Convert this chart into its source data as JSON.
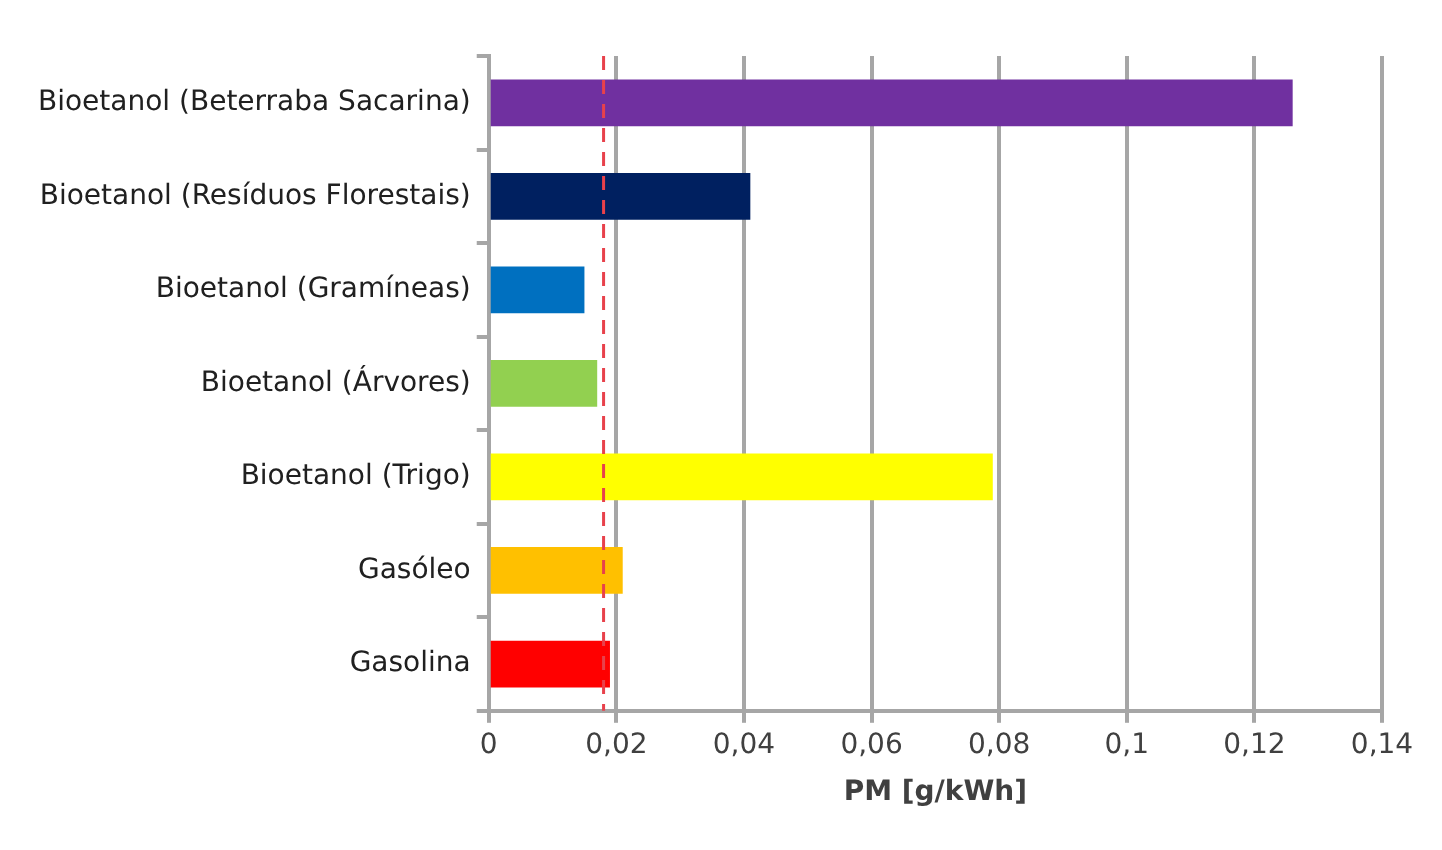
{
  "chart_data": {
    "type": "bar",
    "orientation": "horizontal",
    "xlabel": "PM [g/kWh]",
    "categories": [
      "Bioetanol (Beterraba Sacarina)",
      "Bioetanol (Resíduos Florestais)",
      "Bioetanol (Gramíneas)",
      "Bioetanol (Árvores)",
      "Bioetanol (Trigo)",
      "Gasóleo",
      "Gasolina"
    ],
    "values": [
      0.126,
      0.041,
      0.015,
      0.017,
      0.079,
      0.021,
      0.019
    ],
    "colors": [
      "#7030a0",
      "#002060",
      "#0070c0",
      "#92d050",
      "#ffff00",
      "#ffc000",
      "#ff0000"
    ],
    "xlim": [
      0,
      0.14
    ],
    "xticks": [
      0,
      {
        "value": 0.02,
        "label": "0,02"
      },
      {
        "value": 0.04,
        "label": "0,04"
      },
      {
        "value": 0.06,
        "label": "0,06"
      },
      {
        "value": 0.08,
        "label": "0,08"
      },
      {
        "value": 0.1,
        "label": "0,1"
      },
      {
        "value": 0.12,
        "label": "0,12"
      },
      {
        "value": 0.14,
        "label": "0,14"
      }
    ],
    "grid": "x",
    "legend": false,
    "ref_lines": [
      {
        "axis": "x",
        "value": 0.018,
        "color": "#e8414b",
        "line_style": "dashed"
      }
    ]
  }
}
